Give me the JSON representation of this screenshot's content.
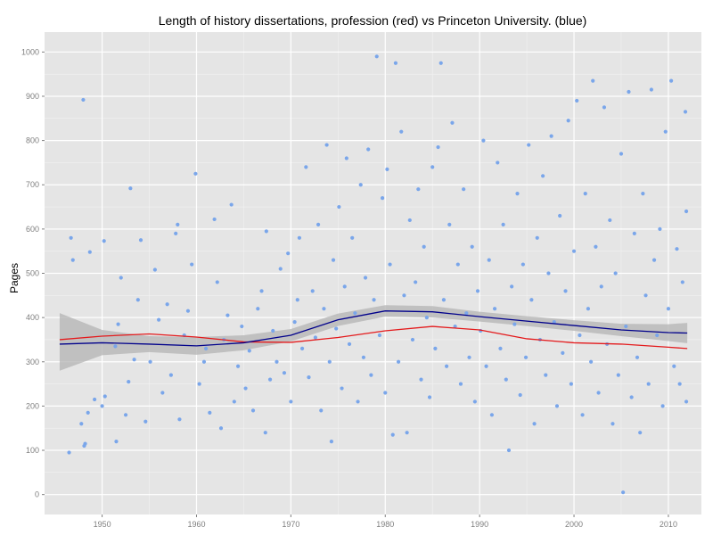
{
  "chart_data": {
    "type": "scatter",
    "title": "Length of history dissertations, profession (red) vs Princeton University. (blue)",
    "xlabel": "",
    "ylabel": "Pages",
    "xlim": [
      1943.9,
      2013.5
    ],
    "ylim": [
      -45,
      1045
    ],
    "x_ticks": [
      1950,
      1960,
      1970,
      1980,
      1990,
      2000,
      2010
    ],
    "x_tick_labels": [
      "1950",
      "1960",
      "1970",
      "1980",
      "1990",
      "2000",
      "2010"
    ],
    "y_ticks": [
      0,
      100,
      200,
      300,
      400,
      500,
      600,
      700,
      800,
      900,
      1000
    ],
    "y_tick_labels": [
      "0",
      "100",
      "200",
      "300",
      "400",
      "500",
      "600",
      "700",
      "800",
      "900",
      "1000"
    ],
    "grid": true,
    "legend": "none",
    "colors": {
      "points": "#7aa6ea",
      "profession": "#e41a1c",
      "princeton": "#00008b",
      "ribbon": "#b3b3b3",
      "panel": "#e5e5e5",
      "grid": "#ffffff"
    },
    "points": [
      [
        1946.5,
        95
      ],
      [
        1948.1,
        110
      ],
      [
        1948.2,
        115
      ],
      [
        1947.8,
        160
      ],
      [
        1948.5,
        185
      ],
      [
        1949.2,
        215
      ],
      [
        1950.0,
        200
      ],
      [
        1950.3,
        222
      ],
      [
        1946.9,
        530
      ],
      [
        1946.7,
        580
      ],
      [
        1948.0,
        892
      ],
      [
        1948.7,
        548
      ],
      [
        1950.2,
        573
      ],
      [
        1951.4,
        335
      ],
      [
        1951.5,
        120
      ],
      [
        1951.7,
        385
      ],
      [
        1952.0,
        490
      ],
      [
        1952.5,
        180
      ],
      [
        1952.8,
        255
      ],
      [
        1953.0,
        692
      ],
      [
        1953.4,
        305
      ],
      [
        1953.8,
        440
      ],
      [
        1954.1,
        575
      ],
      [
        1954.6,
        165
      ],
      [
        1955.1,
        300
      ],
      [
        1955.6,
        508
      ],
      [
        1956.0,
        395
      ],
      [
        1956.4,
        230
      ],
      [
        1956.9,
        430
      ],
      [
        1957.3,
        270
      ],
      [
        1957.8,
        590
      ],
      [
        1958.0,
        610
      ],
      [
        1958.2,
        170
      ],
      [
        1958.7,
        360
      ],
      [
        1959.1,
        415
      ],
      [
        1959.5,
        520
      ],
      [
        1959.9,
        725
      ],
      [
        1960.3,
        250
      ],
      [
        1960.8,
        300
      ],
      [
        1961.0,
        330
      ],
      [
        1961.4,
        185
      ],
      [
        1961.9,
        622
      ],
      [
        1962.2,
        480
      ],
      [
        1962.6,
        150
      ],
      [
        1962.9,
        350
      ],
      [
        1963.3,
        405
      ],
      [
        1963.7,
        655
      ],
      [
        1964.0,
        210
      ],
      [
        1964.4,
        290
      ],
      [
        1964.8,
        380
      ],
      [
        1965.2,
        240
      ],
      [
        1965.6,
        325
      ],
      [
        1966.0,
        190
      ],
      [
        1966.5,
        420
      ],
      [
        1966.9,
        460
      ],
      [
        1967.3,
        140
      ],
      [
        1967.4,
        595
      ],
      [
        1967.8,
        260
      ],
      [
        1968.1,
        370
      ],
      [
        1968.5,
        300
      ],
      [
        1968.9,
        510
      ],
      [
        1969.3,
        275
      ],
      [
        1969.7,
        545
      ],
      [
        1970.0,
        210
      ],
      [
        1970.4,
        390
      ],
      [
        1970.7,
        440
      ],
      [
        1970.9,
        580
      ],
      [
        1971.2,
        330
      ],
      [
        1971.6,
        740
      ],
      [
        1971.9,
        265
      ],
      [
        1972.3,
        460
      ],
      [
        1972.6,
        355
      ],
      [
        1972.9,
        610
      ],
      [
        1973.2,
        190
      ],
      [
        1973.5,
        420
      ],
      [
        1973.8,
        790
      ],
      [
        1974.1,
        300
      ],
      [
        1974.3,
        120
      ],
      [
        1974.5,
        530
      ],
      [
        1974.8,
        375
      ],
      [
        1975.1,
        650
      ],
      [
        1975.4,
        240
      ],
      [
        1975.7,
        470
      ],
      [
        1975.9,
        760
      ],
      [
        1976.2,
        340
      ],
      [
        1976.5,
        580
      ],
      [
        1976.8,
        410
      ],
      [
        1977.1,
        210
      ],
      [
        1977.4,
        700
      ],
      [
        1977.7,
        310
      ],
      [
        1977.9,
        490
      ],
      [
        1978.2,
        780
      ],
      [
        1978.5,
        270
      ],
      [
        1978.8,
        440
      ],
      [
        1979.1,
        990
      ],
      [
        1979.4,
        360
      ],
      [
        1979.7,
        670
      ],
      [
        1980.0,
        230
      ],
      [
        1980.2,
        735
      ],
      [
        1980.5,
        520
      ],
      [
        1980.8,
        135
      ],
      [
        1981.1,
        975
      ],
      [
        1981.4,
        300
      ],
      [
        1981.7,
        820
      ],
      [
        1982.0,
        450
      ],
      [
        1982.3,
        140
      ],
      [
        1982.6,
        620
      ],
      [
        1982.9,
        350
      ],
      [
        1983.2,
        480
      ],
      [
        1983.5,
        690
      ],
      [
        1983.8,
        260
      ],
      [
        1984.1,
        560
      ],
      [
        1984.4,
        400
      ],
      [
        1984.7,
        220
      ],
      [
        1985.0,
        740
      ],
      [
        1985.3,
        330
      ],
      [
        1985.6,
        785
      ],
      [
        1985.9,
        975
      ],
      [
        1986.2,
        440
      ],
      [
        1986.5,
        290
      ],
      [
        1986.8,
        610
      ],
      [
        1987.1,
        840
      ],
      [
        1987.4,
        380
      ],
      [
        1987.7,
        520
      ],
      [
        1988.0,
        250
      ],
      [
        1988.3,
        690
      ],
      [
        1988.6,
        410
      ],
      [
        1988.9,
        310
      ],
      [
        1989.2,
        560
      ],
      [
        1989.5,
        210
      ],
      [
        1989.8,
        460
      ],
      [
        1990.1,
        370
      ],
      [
        1990.4,
        800
      ],
      [
        1990.7,
        290
      ],
      [
        1991.0,
        530
      ],
      [
        1991.3,
        180
      ],
      [
        1991.6,
        420
      ],
      [
        1991.9,
        750
      ],
      [
        1992.2,
        330
      ],
      [
        1992.5,
        610
      ],
      [
        1992.8,
        260
      ],
      [
        1993.1,
        100
      ],
      [
        1993.4,
        470
      ],
      [
        1993.7,
        385
      ],
      [
        1994.0,
        680
      ],
      [
        1994.3,
        225
      ],
      [
        1994.6,
        520
      ],
      [
        1994.9,
        310
      ],
      [
        1995.2,
        790
      ],
      [
        1995.5,
        440
      ],
      [
        1995.8,
        160
      ],
      [
        1996.1,
        580
      ],
      [
        1996.4,
        350
      ],
      [
        1996.7,
        720
      ],
      [
        1997.0,
        270
      ],
      [
        1997.3,
        500
      ],
      [
        1997.6,
        810
      ],
      [
        1997.9,
        390
      ],
      [
        1998.2,
        200
      ],
      [
        1998.5,
        630
      ],
      [
        1998.8,
        320
      ],
      [
        1999.1,
        460
      ],
      [
        1999.4,
        845
      ],
      [
        1999.7,
        250
      ],
      [
        2000.0,
        550
      ],
      [
        2000.3,
        890
      ],
      [
        2000.6,
        360
      ],
      [
        2000.9,
        180
      ],
      [
        2001.2,
        680
      ],
      [
        2001.5,
        420
      ],
      [
        2001.8,
        300
      ],
      [
        2002.0,
        935
      ],
      [
        2002.3,
        560
      ],
      [
        2002.6,
        230
      ],
      [
        2002.9,
        470
      ],
      [
        2003.2,
        875
      ],
      [
        2003.5,
        340
      ],
      [
        2003.8,
        620
      ],
      [
        2004.1,
        160
      ],
      [
        2004.4,
        500
      ],
      [
        2004.7,
        270
      ],
      [
        2005.0,
        770
      ],
      [
        2005.2,
        5
      ],
      [
        2005.5,
        380
      ],
      [
        2005.8,
        910
      ],
      [
        2006.1,
        220
      ],
      [
        2006.4,
        590
      ],
      [
        2006.7,
        310
      ],
      [
        2007.0,
        140
      ],
      [
        2007.3,
        680
      ],
      [
        2007.6,
        450
      ],
      [
        2007.9,
        250
      ],
      [
        2008.2,
        915
      ],
      [
        2008.5,
        530
      ],
      [
        2008.8,
        360
      ],
      [
        2009.1,
        600
      ],
      [
        2009.4,
        200
      ],
      [
        2009.7,
        820
      ],
      [
        2010.0,
        420
      ],
      [
        2010.3,
        935
      ],
      [
        2010.6,
        290
      ],
      [
        2010.9,
        555
      ],
      [
        2011.2,
        250
      ],
      [
        2011.5,
        480
      ],
      [
        2011.8,
        865
      ],
      [
        2011.9,
        210
      ],
      [
        2011.9,
        640
      ]
    ],
    "series": [
      {
        "color": "#e41a1c",
        "x": [
          1945.5,
          1950,
          1955,
          1960,
          1965,
          1970,
          1975,
          1980,
          1985,
          1990,
          1995,
          2000,
          2005,
          2010,
          2012
        ],
        "values": [
          350,
          358,
          363,
          356,
          345,
          344,
          355,
          370,
          380,
          372,
          352,
          343,
          340,
          333,
          330
        ]
      },
      {
        "color": "#00008b",
        "x": [
          1945.5,
          1950,
          1955,
          1960,
          1965,
          1970,
          1975,
          1980,
          1985,
          1990,
          1995,
          2000,
          2005,
          2010,
          2012
        ],
        "values": [
          340,
          343,
          340,
          336,
          343,
          360,
          395,
          415,
          413,
          402,
          392,
          382,
          372,
          366,
          365
        ]
      }
    ],
    "bands": [
      {
        "color": "#b3b3b3",
        "x": [
          1945.5,
          1950,
          1955,
          1960,
          1965,
          1970,
          1975,
          1980,
          1985,
          1990,
          1995,
          2000,
          2005,
          2010,
          2012
        ],
        "lower": [
          280,
          315,
          322,
          316,
          326,
          346,
          381,
          402,
          400,
          391,
          381,
          370,
          358,
          347,
          342
        ],
        "upper": [
          410,
          372,
          358,
          356,
          360,
          374,
          409,
          428,
          426,
          413,
          403,
          394,
          386,
          385,
          388
        ]
      }
    ]
  }
}
